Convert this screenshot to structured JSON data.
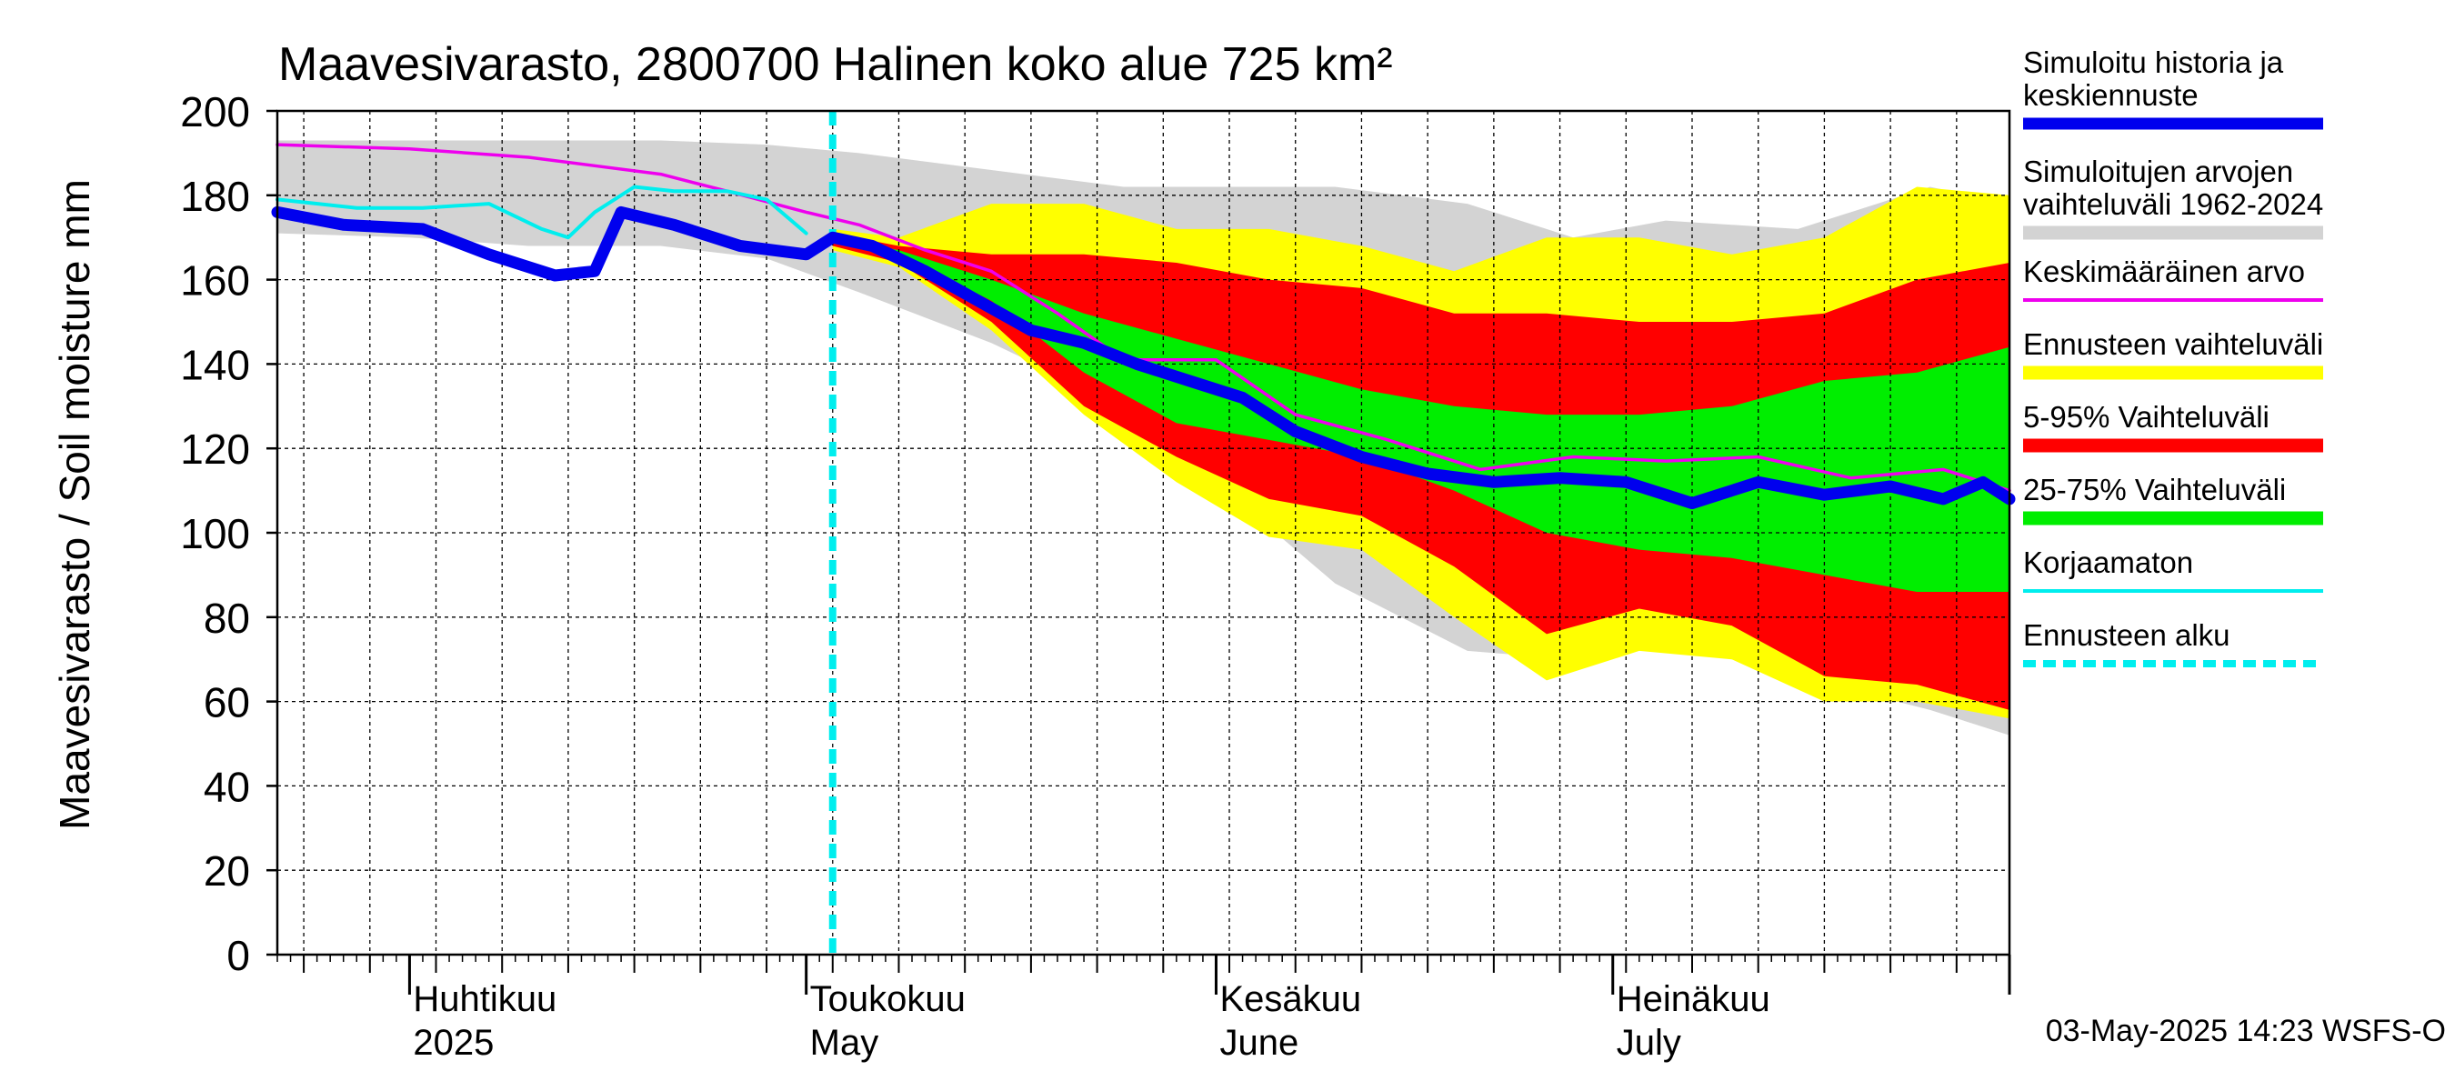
{
  "chart_data": {
    "type": "area",
    "title": "Maavesivarasto, 2800700 Halinen koko alue 725 km²",
    "ylabel": "Maavesivarasto / Soil moisture   mm",
    "ylim": [
      0,
      200
    ],
    "yticks": [
      "0",
      "20",
      "40",
      "60",
      "80",
      "100",
      "120",
      "140",
      "160",
      "180",
      "200"
    ],
    "xlim": [
      "2025-03-22",
      "2025-07-31"
    ],
    "grid": true,
    "legend_position": "right",
    "month_labels": [
      {
        "date": "2025-04-01",
        "fi": "Huhtikuu",
        "en": "2025"
      },
      {
        "date": "2025-05-01",
        "fi": "Toukokuu",
        "en": "May"
      },
      {
        "date": "2025-06-01",
        "fi": "Kesäkuu",
        "en": "June"
      },
      {
        "date": "2025-07-01",
        "fi": "Heinäkuu",
        "en": "July"
      }
    ],
    "forecast_start": "2025-05-03",
    "timestamp": "03-May-2025 14:23 WSFS-O",
    "colors": {
      "history": "#0000ee",
      "range_all": "#d3d3d3",
      "mean": "#ee00ee",
      "forecast_range": "#ffff00",
      "p5_95": "#ff0000",
      "p25_75": "#00ee00",
      "uncorrected": "#00eeee",
      "forecast_start": "#00eeee",
      "grid": "#000000"
    },
    "legend": [
      {
        "label": "Simuloitu historia ja keskiennuste",
        "lines": [
          "Simuloitu historia ja",
          "keskiennuste"
        ],
        "color": "#0000ee",
        "style": "thick"
      },
      {
        "label": "Simuloitujen arvojen vaihteluväli 1962-2024",
        "lines": [
          "Simuloitujen arvojen",
          "vaihteluväli 1962-2024"
        ],
        "color": "#d3d3d3",
        "style": "band"
      },
      {
        "label": "Keskimääräinen arvo",
        "lines": [
          "Keskimääräinen arvo"
        ],
        "color": "#ee00ee",
        "style": "thin"
      },
      {
        "label": "Ennusteen vaihteluväli",
        "lines": [
          "Ennusteen vaihteluväli"
        ],
        "color": "#ffff00",
        "style": "band"
      },
      {
        "label": "5-95% Vaihteluväli",
        "lines": [
          "5-95% Vaihteluväli"
        ],
        "color": "#ff0000",
        "style": "band"
      },
      {
        "label": "25-75% Vaihteluväli",
        "lines": [
          "25-75% Vaihteluväli"
        ],
        "color": "#00ee00",
        "style": "band"
      },
      {
        "label": "Korjaamaton",
        "lines": [
          "Korjaamaton"
        ],
        "color": "#00eeee",
        "style": "thin"
      },
      {
        "label": "Ennusteen alku",
        "lines": [
          "Ennusteen alku"
        ],
        "color": "#00eeee",
        "style": "dashed"
      }
    ],
    "series": [
      {
        "name": "Simuloitujen arvojen vaihteluväli 1962-2024",
        "kind": "band",
        "x": [
          "2025-03-22",
          "2025-04-01",
          "2025-04-10",
          "2025-04-20",
          "2025-04-28",
          "2025-05-05",
          "2025-05-15",
          "2025-05-25",
          "2025-06-01",
          "2025-06-10",
          "2025-06-20",
          "2025-06-28",
          "2025-07-05",
          "2025-07-15",
          "2025-07-25",
          "2025-07-31"
        ],
        "upper": [
          193,
          193,
          193,
          193,
          192,
          190,
          186,
          182,
          182,
          182,
          178,
          170,
          174,
          172,
          182,
          178
        ],
        "lower": [
          171,
          170,
          168,
          168,
          165,
          157,
          145,
          130,
          112,
          88,
          72,
          70,
          74,
          66,
          58,
          52
        ]
      },
      {
        "name": "Ennusteen vaihteluväli",
        "kind": "band",
        "x": [
          "2025-05-03",
          "2025-05-08",
          "2025-05-15",
          "2025-05-22",
          "2025-05-29",
          "2025-06-05",
          "2025-06-12",
          "2025-06-19",
          "2025-06-26",
          "2025-07-03",
          "2025-07-10",
          "2025-07-17",
          "2025-07-24",
          "2025-07-31"
        ],
        "upper": [
          172,
          170,
          178,
          178,
          172,
          172,
          168,
          162,
          170,
          170,
          166,
          170,
          182,
          180
        ],
        "lower": [
          167,
          163,
          148,
          128,
          112,
          99,
          96,
          80,
          65,
          72,
          70,
          60,
          60,
          56
        ]
      },
      {
        "name": "5-95% Vaihteluväli",
        "kind": "band",
        "x": [
          "2025-05-03",
          "2025-05-08",
          "2025-05-15",
          "2025-05-22",
          "2025-05-29",
          "2025-06-05",
          "2025-06-12",
          "2025-06-19",
          "2025-06-26",
          "2025-07-03",
          "2025-07-10",
          "2025-07-17",
          "2025-07-24",
          "2025-07-31"
        ],
        "upper": [
          171,
          168,
          166,
          166,
          164,
          160,
          158,
          152,
          152,
          150,
          150,
          152,
          160,
          164
        ],
        "lower": [
          168,
          164,
          150,
          130,
          118,
          108,
          104,
          92,
          76,
          82,
          78,
          66,
          64,
          58
        ]
      },
      {
        "name": "25-75% Vaihteluväli",
        "kind": "band",
        "x": [
          "2025-05-03",
          "2025-05-08",
          "2025-05-15",
          "2025-05-22",
          "2025-05-29",
          "2025-06-05",
          "2025-06-12",
          "2025-06-19",
          "2025-06-26",
          "2025-07-03",
          "2025-07-10",
          "2025-07-17",
          "2025-07-24",
          "2025-07-31"
        ],
        "upper": [
          170,
          167,
          160,
          152,
          146,
          140,
          134,
          130,
          128,
          128,
          130,
          136,
          138,
          144
        ],
        "lower": [
          169,
          166,
          155,
          138,
          126,
          122,
          118,
          110,
          100,
          96,
          94,
          90,
          86,
          86
        ]
      },
      {
        "name": "Keskimääräinen arvo",
        "kind": "line",
        "x": [
          "2025-03-22",
          "2025-04-01",
          "2025-04-10",
          "2025-04-15",
          "2025-04-20",
          "2025-04-25",
          "2025-05-01",
          "2025-05-05",
          "2025-05-10",
          "2025-05-15",
          "2025-05-20",
          "2025-05-25",
          "2025-06-01",
          "2025-06-07",
          "2025-06-14",
          "2025-06-21",
          "2025-06-28",
          "2025-07-05",
          "2025-07-12",
          "2025-07-19",
          "2025-07-26",
          "2025-07-31"
        ],
        "y": [
          192,
          191,
          189,
          187,
          185,
          181,
          176,
          173,
          167,
          162,
          152,
          141,
          141,
          128,
          122,
          115,
          118,
          117,
          118,
          113,
          115,
          110
        ]
      },
      {
        "name": "Korjaamaton",
        "kind": "line",
        "x": [
          "2025-03-22",
          "2025-03-28",
          "2025-04-02",
          "2025-04-07",
          "2025-04-11",
          "2025-04-13",
          "2025-04-15",
          "2025-04-18",
          "2025-04-21",
          "2025-04-25",
          "2025-04-28",
          "2025-05-01"
        ],
        "y": [
          179,
          177,
          177,
          178,
          172,
          170,
          176,
          182,
          181,
          181,
          179,
          171
        ]
      },
      {
        "name": "Simuloitu historia ja keskiennuste",
        "kind": "line",
        "x": [
          "2025-03-22",
          "2025-03-27",
          "2025-04-02",
          "2025-04-07",
          "2025-04-12",
          "2025-04-15",
          "2025-04-17",
          "2025-04-21",
          "2025-04-26",
          "2025-05-01",
          "2025-05-03",
          "2025-05-06",
          "2025-05-10",
          "2025-05-14",
          "2025-05-18",
          "2025-05-22",
          "2025-05-26",
          "2025-05-30",
          "2025-06-03",
          "2025-06-07",
          "2025-06-12",
          "2025-06-17",
          "2025-06-22",
          "2025-06-27",
          "2025-07-02",
          "2025-07-07",
          "2025-07-12",
          "2025-07-17",
          "2025-07-22",
          "2025-07-26",
          "2025-07-29",
          "2025-07-31"
        ],
        "y": [
          176,
          173,
          172,
          166,
          161,
          162,
          176,
          173,
          168,
          166,
          170,
          168,
          162,
          155,
          148,
          145,
          140,
          136,
          132,
          124,
          118,
          114,
          112,
          113,
          112,
          107,
          112,
          109,
          111,
          108,
          112,
          108
        ]
      }
    ]
  }
}
